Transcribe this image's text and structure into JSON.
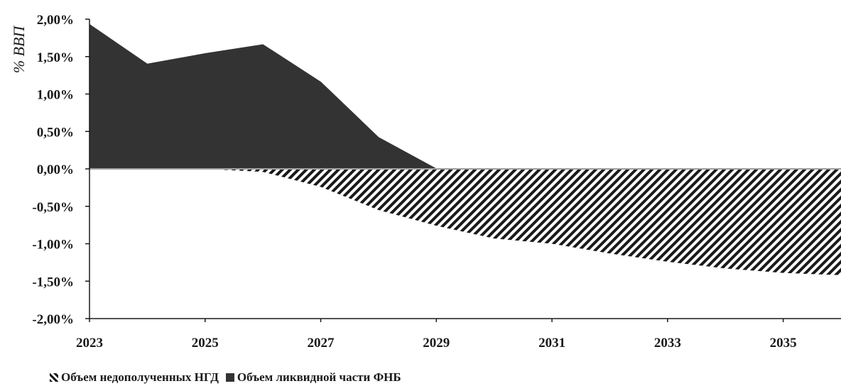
{
  "chart_data": {
    "type": "area",
    "ylabel": "% ВВП",
    "ylim": [
      -0.02,
      0.02
    ],
    "y_ticks": [
      "2,00%",
      "1,50%",
      "1,00%",
      "0,50%",
      "0,00%",
      "-0,50%",
      "-1,00%",
      "-1,50%",
      "-2,00%"
    ],
    "x_ticks": [
      "2023",
      "2025",
      "2027",
      "2029",
      "2031",
      "2033",
      "2035"
    ],
    "x": [
      2023,
      2024,
      2025,
      2026,
      2027,
      2028,
      2029,
      2030,
      2031,
      2032,
      2033,
      2034,
      2035,
      2036
    ],
    "series": [
      {
        "name": "Объем недополученных НГД",
        "values": [
          0,
          0,
          0,
          -0.0004,
          -0.0024,
          -0.0055,
          -0.0076,
          -0.0093,
          -0.01,
          -0.0113,
          -0.0124,
          -0.0133,
          -0.0139,
          -0.0142
        ]
      },
      {
        "name": "Объем ликвидной части ФНБ",
        "values": [
          0.0193,
          0.014,
          0.0154,
          0.0166,
          0.0116,
          0.0042,
          0.0,
          0,
          0,
          0,
          0,
          0,
          0,
          0
        ]
      }
    ],
    "colors": {
      "solid": "#333333",
      "hatch": "#1a1a1a",
      "axis": "#1a1a1a"
    },
    "grid": false,
    "legend_position": "bottom-left"
  }
}
